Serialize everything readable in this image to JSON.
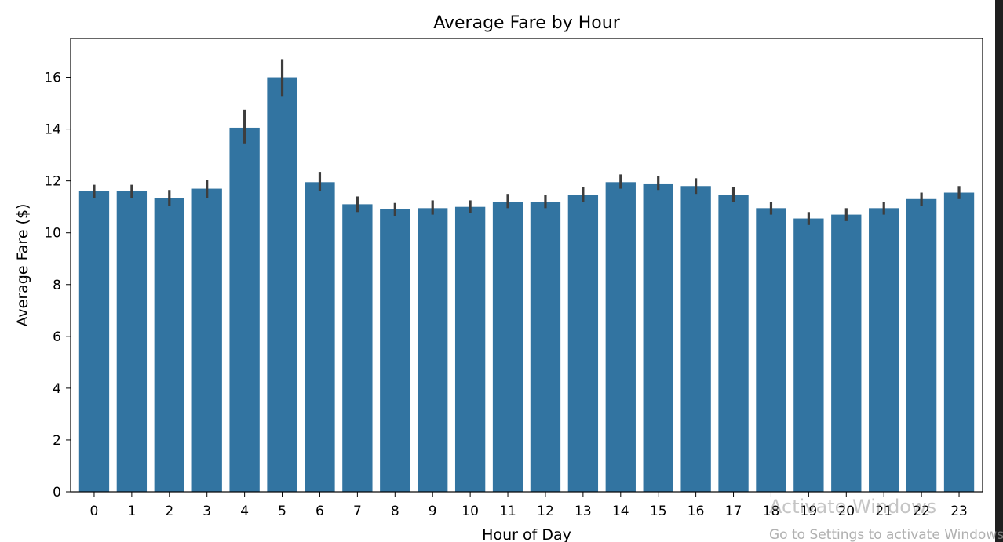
{
  "chart_data": {
    "type": "bar",
    "title": "Average Fare by Hour",
    "xlabel": "Hour of Day",
    "ylabel": "Average Fare ($)",
    "categories": [
      "0",
      "1",
      "2",
      "3",
      "4",
      "5",
      "6",
      "7",
      "8",
      "9",
      "10",
      "11",
      "12",
      "13",
      "14",
      "15",
      "16",
      "17",
      "18",
      "19",
      "20",
      "21",
      "22",
      "23"
    ],
    "values": [
      11.6,
      11.6,
      11.35,
      11.7,
      14.05,
      16.0,
      11.95,
      11.1,
      10.9,
      10.95,
      11.0,
      11.2,
      11.2,
      11.45,
      11.95,
      11.9,
      11.8,
      11.45,
      10.95,
      10.55,
      10.7,
      10.95,
      11.3,
      11.55
    ],
    "error_bars": [
      [
        11.35,
        11.85
      ],
      [
        11.35,
        11.85
      ],
      [
        11.05,
        11.65
      ],
      [
        11.35,
        12.05
      ],
      [
        13.45,
        14.75
      ],
      [
        15.25,
        16.7
      ],
      [
        11.6,
        12.35
      ],
      [
        10.8,
        11.4
      ],
      [
        10.65,
        11.15
      ],
      [
        10.7,
        11.25
      ],
      [
        10.75,
        11.25
      ],
      [
        10.95,
        11.5
      ],
      [
        10.95,
        11.45
      ],
      [
        11.2,
        11.75
      ],
      [
        11.7,
        12.25
      ],
      [
        11.65,
        12.2
      ],
      [
        11.5,
        12.1
      ],
      [
        11.2,
        11.75
      ],
      [
        10.7,
        11.2
      ],
      [
        10.3,
        10.8
      ],
      [
        10.45,
        10.95
      ],
      [
        10.7,
        11.2
      ],
      [
        11.05,
        11.55
      ],
      [
        11.3,
        11.8
      ]
    ],
    "ylim": [
      0,
      17.5
    ],
    "yticks": [
      0,
      2,
      4,
      6,
      8,
      10,
      12,
      14,
      16
    ],
    "grid": false,
    "bar_color": "#3274a1",
    "errorbar_color": "#3d3d3d"
  },
  "watermark": {
    "line1": "Activate Windows",
    "line2": "Go to Settings to activate Windows."
  }
}
